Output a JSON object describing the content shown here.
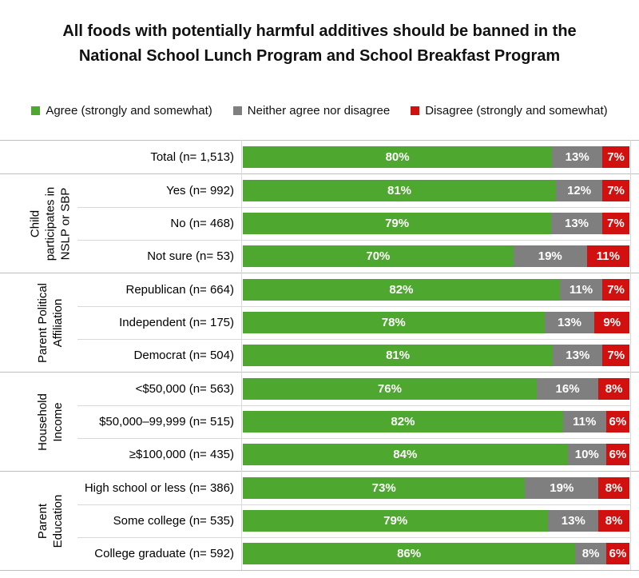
{
  "chart_data": {
    "type": "bar",
    "stacked": true,
    "orientation": "horizontal",
    "title": "All foods with potentially harmful additives should be banned in the National School Lunch Program and School Breakfast Program",
    "unit": "%",
    "xlim": [
      0,
      100
    ],
    "legend_position": "top",
    "grid": false,
    "series": [
      {
        "name": "Agree (strongly and somewhat)",
        "color": "#4EA72E"
      },
      {
        "name": "Neither agree nor disagree",
        "color": "#7F7F7F"
      },
      {
        "name": "Disagree (strongly and somewhat)",
        "color": "#D01110"
      }
    ],
    "groups": [
      {
        "group_label_lines": null,
        "rows": [
          {
            "category": "Total (n= 1,513)",
            "values": [
              80,
              13,
              7
            ]
          }
        ]
      },
      {
        "group_label_lines": [
          "Child",
          "participates in",
          "NSLP or SBP"
        ],
        "rows": [
          {
            "category": "Yes (n= 992)",
            "values": [
              81,
              12,
              7
            ]
          },
          {
            "category": "No (n= 468)",
            "values": [
              79,
              13,
              7
            ]
          },
          {
            "category": "Not sure (n= 53)",
            "values": [
              70,
              19,
              11
            ]
          }
        ]
      },
      {
        "group_label_lines": [
          "Parent Political",
          "Affiliation"
        ],
        "rows": [
          {
            "category": "Republican (n= 664)",
            "values": [
              82,
              11,
              7
            ]
          },
          {
            "category": "Independent (n= 175)",
            "values": [
              78,
              13,
              9
            ]
          },
          {
            "category": "Democrat (n= 504)",
            "values": [
              81,
              13,
              7
            ]
          }
        ]
      },
      {
        "group_label_lines": [
          "Household",
          "Income"
        ],
        "rows": [
          {
            "category": "<$50,000 (n= 563)",
            "values": [
              76,
              16,
              8
            ]
          },
          {
            "category": "$50,000–99,999 (n= 515)",
            "values": [
              82,
              11,
              6
            ]
          },
          {
            "category": "≥$100,000 (n= 435)",
            "values": [
              84,
              10,
              6
            ]
          }
        ]
      },
      {
        "group_label_lines": [
          "Parent",
          "Education"
        ],
        "rows": [
          {
            "category": "High school or less (n= 386)",
            "values": [
              73,
              19,
              8
            ]
          },
          {
            "category": "Some college (n= 535)",
            "values": [
              79,
              13,
              8
            ]
          },
          {
            "category": "College graduate (n= 592)",
            "values": [
              86,
              8,
              6
            ]
          }
        ]
      }
    ],
    "value_label_suffix": "%",
    "colors": {
      "group_border": "#bfbfbf",
      "row_separator": "#d9d9d9",
      "axis_line": "#d9d9d9",
      "bar_label_text": "#ffffff"
    }
  }
}
